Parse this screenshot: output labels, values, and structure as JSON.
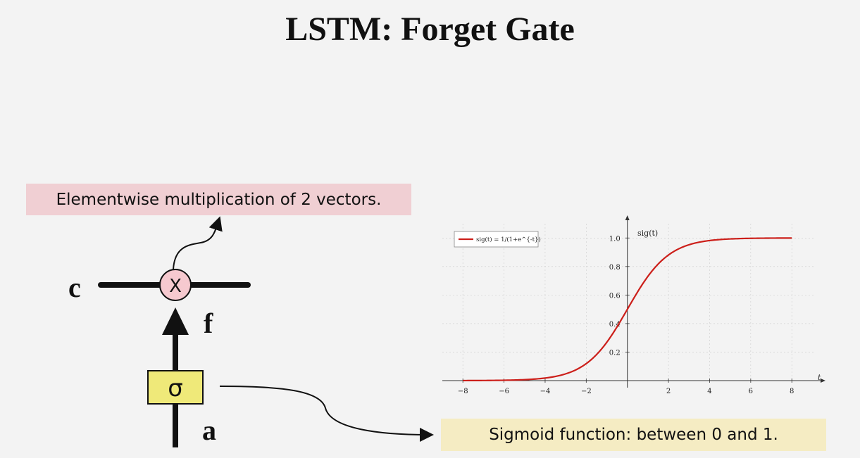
{
  "slide": {
    "title": "LSTM: Forget Gate"
  },
  "diagram": {
    "cell_label": "c",
    "gate_output_label": "f",
    "input_label": "a",
    "multiply_symbol": "X",
    "sigma_symbol": "σ",
    "multiply_callout": "Elementwise multiplication of 2 vectors.",
    "sigmoid_callout": "Sigmoid function: between 0 and 1."
  },
  "colors": {
    "mult_callout_bg": "#f0cfd3",
    "sig_callout_bg": "#f5ecc3",
    "multiply_node_fill": "#f6c9cf",
    "sigma_box_fill": "#efe979",
    "curve_color": "#cc1f1a"
  },
  "chart_data": {
    "type": "line",
    "xlabel": "t",
    "ylabel": "sig(t)",
    "legend": "sig(t) = 1/(1+e^{-t})",
    "legend_placement": "top-left",
    "grid": true,
    "xlim": [
      -9,
      9.5
    ],
    "ylim": [
      0,
      1.1
    ],
    "x_ticks": [
      -8,
      -6,
      -4,
      -2,
      2,
      4,
      6,
      8
    ],
    "x_tick_labels": [
      "−8",
      "−6",
      "−4",
      "−2",
      "2",
      "4",
      "6",
      "8"
    ],
    "y_ticks": [
      0.2,
      0.4,
      0.6,
      0.8,
      1.0
    ],
    "y_tick_labels": [
      "0.2",
      "0.4",
      "0.6",
      "0.8",
      "1.0"
    ],
    "series": [
      {
        "name": "sig(t) = 1/(1+e^{-t})",
        "x": [
          -8,
          -7,
          -6,
          -5,
          -4,
          -3,
          -2,
          -1.5,
          -1,
          -0.5,
          0,
          0.5,
          1,
          1.5,
          2,
          3,
          4,
          5,
          6,
          7,
          8
        ],
        "y": [
          0.0003,
          0.0009,
          0.0025,
          0.0067,
          0.018,
          0.047,
          0.119,
          0.182,
          0.269,
          0.378,
          0.5,
          0.622,
          0.731,
          0.818,
          0.881,
          0.953,
          0.982,
          0.993,
          0.9975,
          0.9991,
          0.9997
        ]
      }
    ]
  }
}
